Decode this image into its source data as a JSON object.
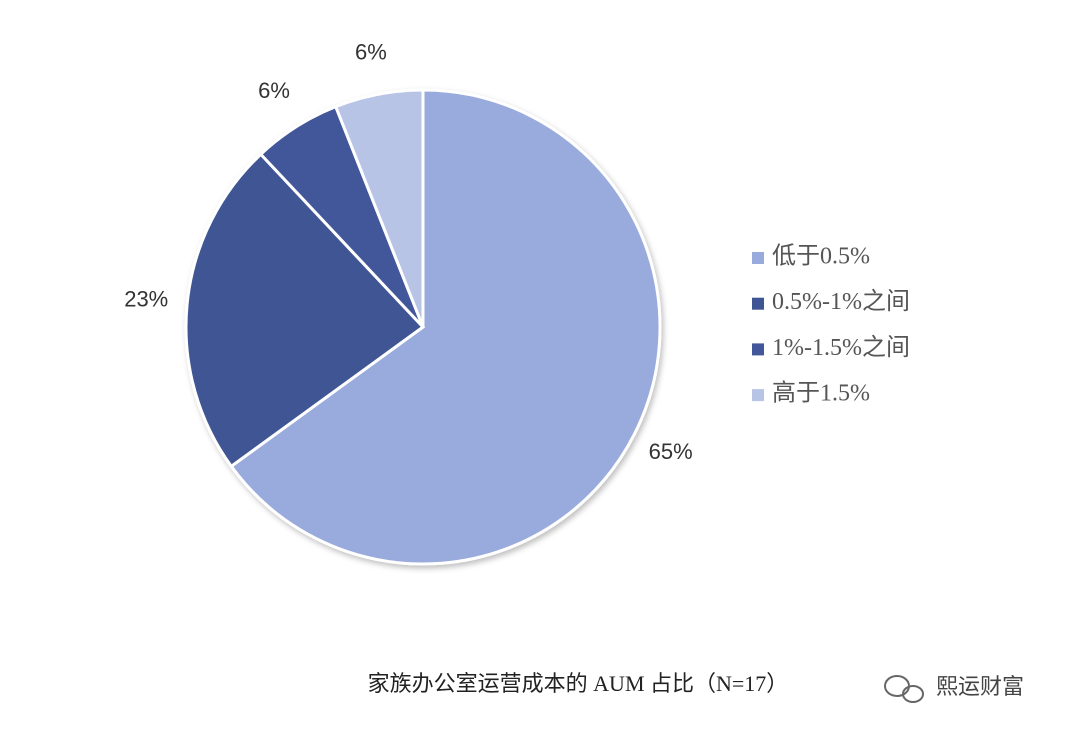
{
  "chart_data": {
    "type": "pie",
    "title": "家族办公室运营成本的 AUM 占比（N=17）",
    "categories": [
      "低于0.5%",
      "0.5%-1%之间",
      "1%-1.5%之间",
      "高于1.5%"
    ],
    "values": [
      65,
      23,
      6,
      6
    ],
    "value_labels": [
      "65%",
      "23%",
      "6%",
      "6%"
    ],
    "colors": [
      "#99aadc",
      "#3f5593",
      "#42579a",
      "#b8c4e6"
    ],
    "legend": "right"
  },
  "watermark": "熙运财富"
}
